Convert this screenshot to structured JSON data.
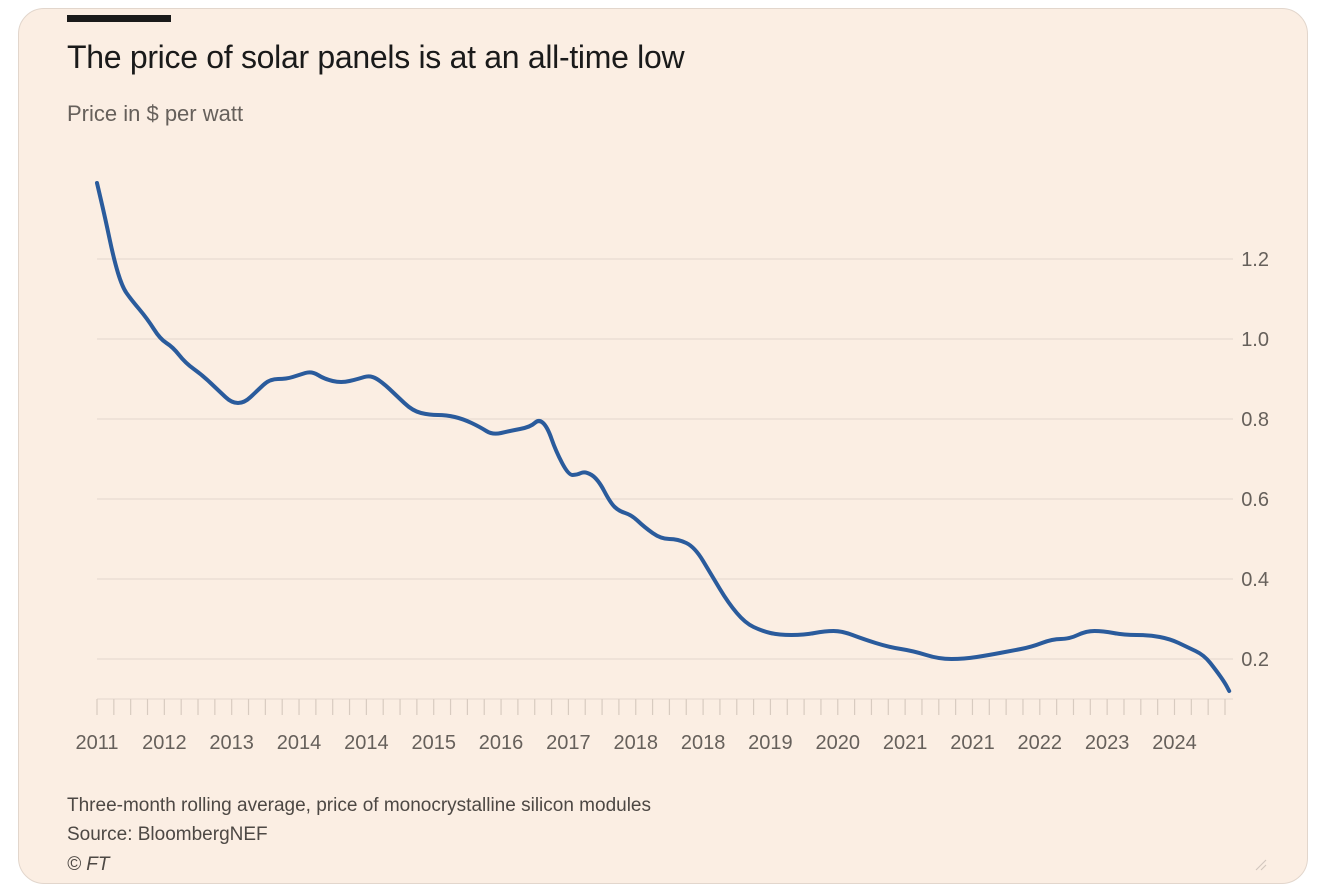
{
  "header": {
    "title": "The price of solar panels is at an all-time low",
    "subtitle": "Price in $ per watt"
  },
  "footer": {
    "note": "Three-month rolling average, price of monocrystalline silicon modules",
    "source": "Source: BloombergNEF",
    "credit": "© FT"
  },
  "colors": {
    "background": "#fbeee3",
    "line": "#2a5b9c",
    "grid": "#e8dcd2",
    "text": "#1a1a1a",
    "muted": "#66605b"
  },
  "chart_data": {
    "type": "line",
    "title": "The price of solar panels is at an all-time low",
    "subtitle": "Price in $ per watt",
    "xlabel": "",
    "ylabel": "",
    "ylim": [
      0.1,
      1.4
    ],
    "xlim": [
      2011.2,
      2024.6
    ],
    "grid": true,
    "y_axis_position": "right",
    "y_ticks": [
      0.2,
      0.4,
      0.6,
      0.8,
      1.0,
      1.2
    ],
    "y_tick_labels": [
      "0.2",
      "0.4",
      "0.6",
      "0.8",
      "1.0",
      "1.2"
    ],
    "x_tick_labels": [
      "2011",
      "2012",
      "2013",
      "2014",
      "2014",
      "2015",
      "2016",
      "2017",
      "2018",
      "2018",
      "2019",
      "2020",
      "2021",
      "2021",
      "2022",
      "2023",
      "2024"
    ],
    "x_tick_positions": [
      2011.2,
      2012.0,
      2012.8,
      2013.6,
      2014.4,
      2015.2,
      2016.0,
      2016.8,
      2017.6,
      2018.4,
      2019.2,
      2020.0,
      2020.8,
      2021.6,
      2022.4,
      2023.2,
      2024.0
    ],
    "series": [
      {
        "name": "",
        "points": [
          [
            2011.2,
            1.39
          ],
          [
            2011.3,
            1.3
          ],
          [
            2011.4,
            1.2
          ],
          [
            2011.5,
            1.13
          ],
          [
            2011.6,
            1.1
          ],
          [
            2011.8,
            1.05
          ],
          [
            2011.95,
            1.0
          ],
          [
            2012.1,
            0.98
          ],
          [
            2012.25,
            0.94
          ],
          [
            2012.45,
            0.91
          ],
          [
            2012.65,
            0.87
          ],
          [
            2012.8,
            0.84
          ],
          [
            2012.95,
            0.84
          ],
          [
            2013.1,
            0.87
          ],
          [
            2013.25,
            0.9
          ],
          [
            2013.45,
            0.9
          ],
          [
            2013.6,
            0.91
          ],
          [
            2013.75,
            0.92
          ],
          [
            2013.9,
            0.9
          ],
          [
            2014.1,
            0.89
          ],
          [
            2014.3,
            0.9
          ],
          [
            2014.45,
            0.91
          ],
          [
            2014.6,
            0.89
          ],
          [
            2014.75,
            0.86
          ],
          [
            2014.95,
            0.82
          ],
          [
            2015.15,
            0.81
          ],
          [
            2015.35,
            0.81
          ],
          [
            2015.55,
            0.8
          ],
          [
            2015.75,
            0.78
          ],
          [
            2015.9,
            0.76
          ],
          [
            2016.1,
            0.77
          ],
          [
            2016.35,
            0.78
          ],
          [
            2016.45,
            0.8
          ],
          [
            2016.55,
            0.78
          ],
          [
            2016.65,
            0.72
          ],
          [
            2016.8,
            0.66
          ],
          [
            2016.9,
            0.66
          ],
          [
            2017.0,
            0.67
          ],
          [
            2017.15,
            0.65
          ],
          [
            2017.3,
            0.59
          ],
          [
            2017.4,
            0.57
          ],
          [
            2017.55,
            0.56
          ],
          [
            2017.7,
            0.53
          ],
          [
            2017.9,
            0.5
          ],
          [
            2018.1,
            0.5
          ],
          [
            2018.3,
            0.48
          ],
          [
            2018.5,
            0.41
          ],
          [
            2018.7,
            0.34
          ],
          [
            2018.9,
            0.29
          ],
          [
            2019.1,
            0.27
          ],
          [
            2019.3,
            0.26
          ],
          [
            2019.6,
            0.26
          ],
          [
            2019.85,
            0.27
          ],
          [
            2020.05,
            0.27
          ],
          [
            2020.3,
            0.25
          ],
          [
            2020.6,
            0.23
          ],
          [
            2020.9,
            0.22
          ],
          [
            2021.2,
            0.2
          ],
          [
            2021.5,
            0.2
          ],
          [
            2021.8,
            0.21
          ],
          [
            2022.05,
            0.22
          ],
          [
            2022.3,
            0.23
          ],
          [
            2022.55,
            0.25
          ],
          [
            2022.75,
            0.25
          ],
          [
            2022.95,
            0.27
          ],
          [
            2023.15,
            0.27
          ],
          [
            2023.4,
            0.26
          ],
          [
            2023.7,
            0.26
          ],
          [
            2023.95,
            0.25
          ],
          [
            2024.15,
            0.23
          ],
          [
            2024.35,
            0.21
          ],
          [
            2024.5,
            0.17
          ],
          [
            2024.6,
            0.14
          ],
          [
            2024.65,
            0.12
          ]
        ]
      }
    ]
  }
}
